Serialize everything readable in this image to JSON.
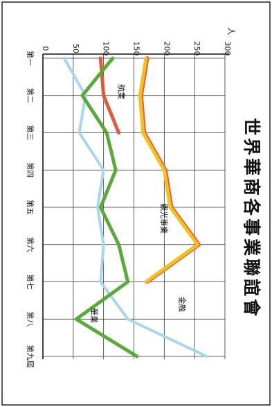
{
  "chart_data": {
    "type": "line",
    "title": "世界華商各事業聯誼會",
    "y_unit": "人",
    "x": [
      "第一",
      "第二",
      "第三",
      "第四",
      "第五",
      "第六",
      "第七",
      "第八",
      "第九屆"
    ],
    "yticks": [
      "0",
      "50",
      "100",
      "150",
      "200",
      "250",
      "300"
    ],
    "ylim": [
      0,
      300
    ],
    "grid": true,
    "series": [
      {
        "name": "航業",
        "color": "#e05a3e",
        "values": [
          95,
          100,
          125,
          null,
          null,
          null,
          null,
          null,
          null
        ]
      },
      {
        "name": "觀光事業",
        "color": "#f2c21b",
        "values": [
          170,
          160,
          165,
          200,
          210,
          255,
          170,
          null,
          null
        ]
      },
      {
        "name": "金融",
        "color": "#a9d6ef",
        "values": [
          35,
          70,
          60,
          100,
          90,
          100,
          95,
          140,
          270
        ]
      },
      {
        "name": "華業",
        "color": "#5aaa3a",
        "values": [
          115,
          65,
          105,
          120,
          95,
          125,
          140,
          55,
          155
        ]
      }
    ]
  }
}
